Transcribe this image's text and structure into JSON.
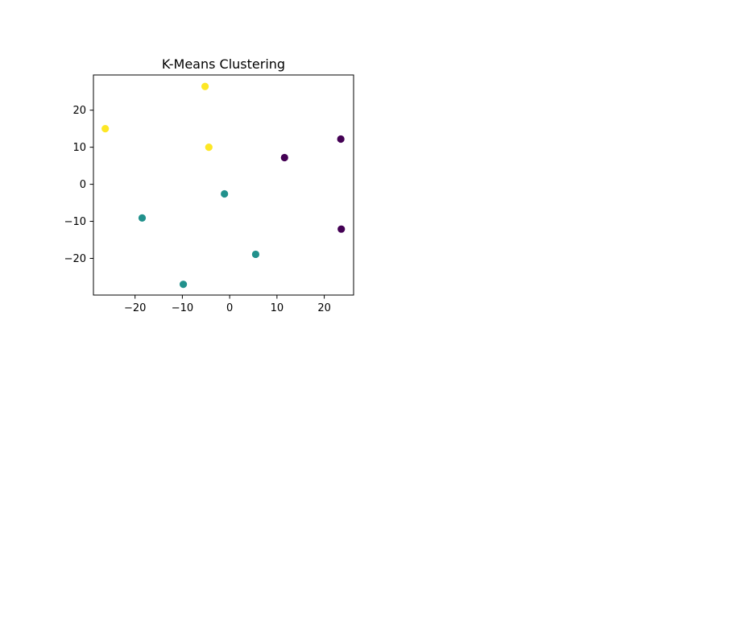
{
  "chart_data": {
    "type": "scatter",
    "title": "K-Means Clustering",
    "xlabel": "",
    "ylabel": "",
    "xlim": [
      -28.8,
      26.2
    ],
    "ylim": [
      -29.9,
      29.5
    ],
    "xticks": [
      -20,
      -10,
      0,
      10,
      20
    ],
    "yticks": [
      -20,
      -10,
      0,
      10,
      20
    ],
    "xtick_labels": [
      "−20",
      "−10",
      "0",
      "10",
      "20"
    ],
    "ytick_labels": [
      "−20",
      "−10",
      "0",
      "10",
      "20"
    ],
    "grid": false,
    "legend": "none",
    "cluster_colors": [
      "#440154",
      "#21918c",
      "#fde725"
    ],
    "points": [
      {
        "x": -5.2,
        "y": 26.4,
        "cluster": 2
      },
      {
        "x": -26.3,
        "y": 15.0,
        "cluster": 2
      },
      {
        "x": -4.4,
        "y": 10.0,
        "cluster": 2
      },
      {
        "x": 23.5,
        "y": 12.2,
        "cluster": 0
      },
      {
        "x": 11.6,
        "y": 7.2,
        "cluster": 0
      },
      {
        "x": 23.6,
        "y": -12.1,
        "cluster": 0
      },
      {
        "x": -1.1,
        "y": -2.6,
        "cluster": 1
      },
      {
        "x": -18.5,
        "y": -9.1,
        "cluster": 1
      },
      {
        "x": 5.5,
        "y": -18.9,
        "cluster": 1
      },
      {
        "x": -9.8,
        "y": -27.0,
        "cluster": 1
      }
    ]
  }
}
